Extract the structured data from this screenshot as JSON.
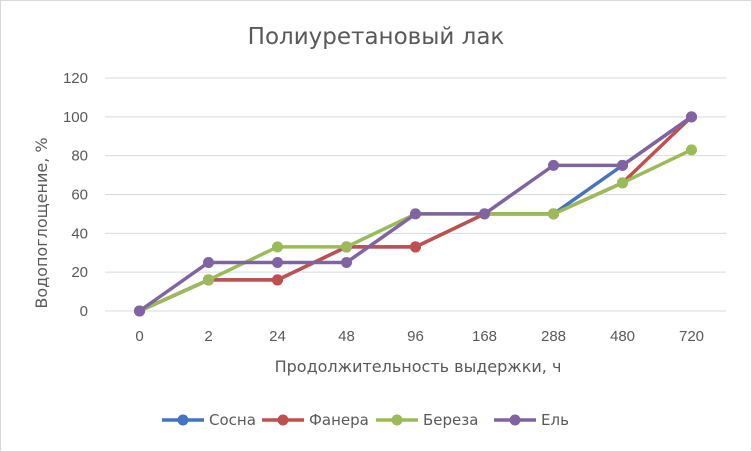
{
  "chart_data": {
    "type": "line",
    "title": "Полиуретановый лак",
    "xlabel": "Продолжительность выдержки, ч",
    "ylabel": "Водопоглощение, %",
    "categories": [
      "0",
      "2",
      "24",
      "48",
      "96",
      "168",
      "288",
      "480",
      "720"
    ],
    "ylim": [
      0,
      120
    ],
    "yticks": [
      "0",
      "20",
      "40",
      "60",
      "80",
      "100",
      "120"
    ],
    "grid": "horizontal",
    "legend_position": "bottom",
    "series": [
      {
        "name": "Сосна",
        "color": "#4472c4",
        "values": [
          0,
          16,
          16,
          33,
          33,
          50,
          50,
          75,
          100
        ]
      },
      {
        "name": "Фанера",
        "color": "#c0504d",
        "values": [
          0,
          16,
          16,
          33,
          33,
          50,
          50,
          66,
          100
        ]
      },
      {
        "name": "Береза",
        "color": "#9bbb59",
        "values": [
          0,
          16,
          33,
          33,
          50,
          50,
          50,
          66,
          83
        ]
      },
      {
        "name": "Ель",
        "color": "#8064a2",
        "values": [
          0,
          25,
          25,
          25,
          50,
          50,
          75,
          75,
          100
        ]
      }
    ]
  }
}
